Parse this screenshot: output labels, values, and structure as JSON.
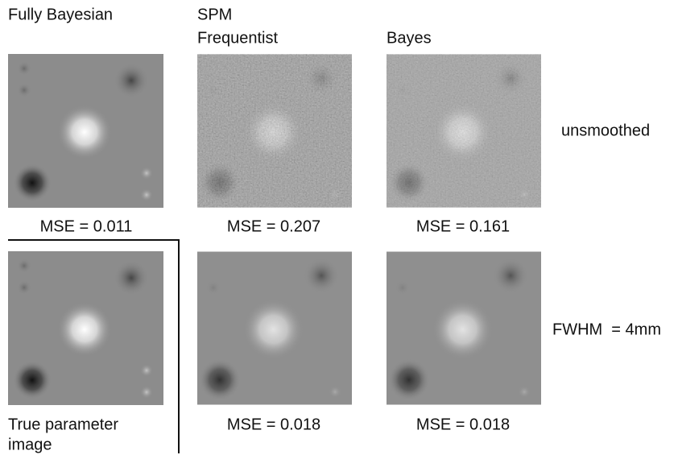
{
  "column_headers": {
    "fully_bayesian": "Fully Bayesian",
    "spm": "SPM",
    "frequentist": "Frequentist",
    "bayes": "Bayes"
  },
  "row_labels": [
    "unsmoothed",
    "FWHM  = 4mm"
  ],
  "captions": [
    [
      "MSE = 0.011",
      "MSE = 0.207",
      "MSE = 0.161"
    ],
    [
      "MSE = 0.018",
      "MSE = 0.018"
    ]
  ],
  "true_image_caption": [
    "True parameter",
    "image"
  ]
}
